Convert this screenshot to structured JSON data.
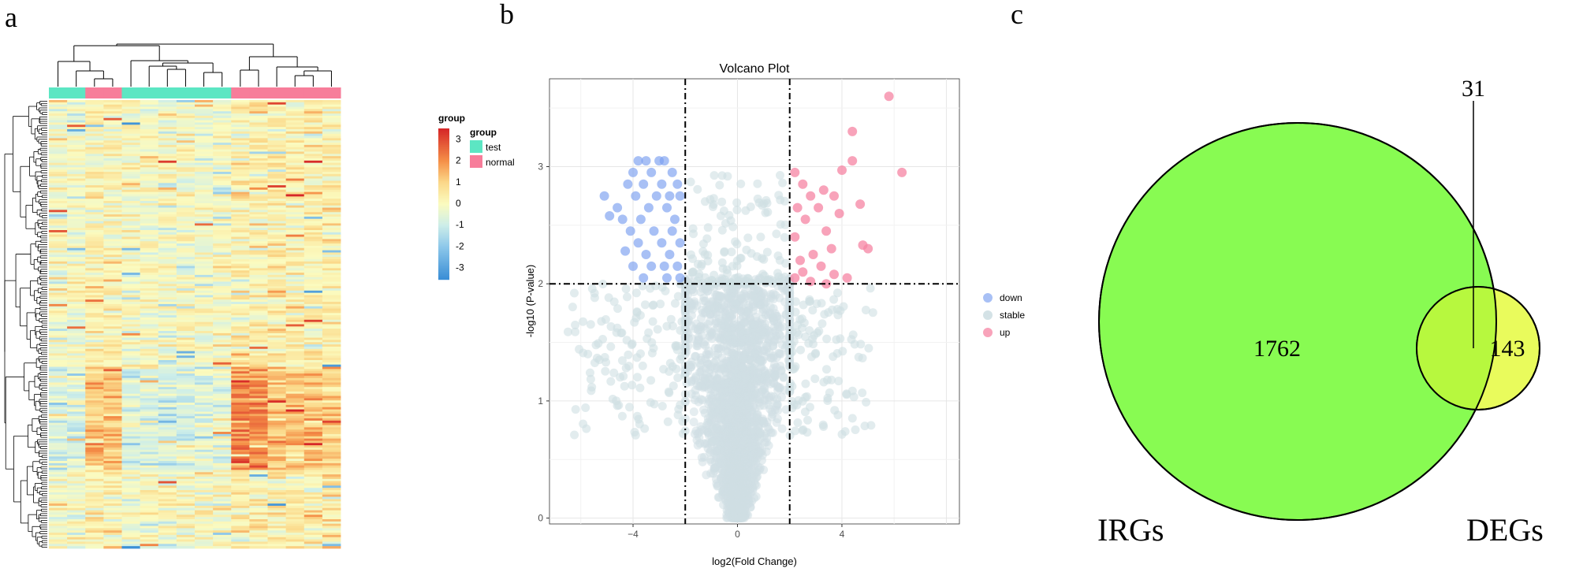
{
  "panels": {
    "a": "a",
    "b": "b",
    "c": "c"
  },
  "chart_data": [
    {
      "type": "heatmap",
      "panel": "a",
      "legend": {
        "title": "group",
        "entries": [
          {
            "label": "test",
            "color": "#5ce6c3"
          },
          {
            "label": "normal",
            "color": "#f77d9a"
          }
        ]
      },
      "colorbar": {
        "ticks": [
          "3",
          "2",
          "1",
          "0",
          "-1",
          "-2",
          "-3"
        ],
        "range": [
          -3.5,
          3.5
        ]
      },
      "column_groups": [
        "test",
        "test",
        "normal",
        "normal",
        "test",
        "test",
        "test",
        "test",
        "test",
        "test",
        "normal",
        "normal",
        "normal",
        "normal",
        "normal",
        "normal"
      ],
      "approx_rows": 200
    },
    {
      "type": "scatter",
      "panel": "b",
      "title": "Volcano Plot",
      "xlabel": "log2(Fold Change)",
      "ylabel": "-log10 (P-value)",
      "xlim": [
        -7.2,
        8.5
      ],
      "ylim": [
        -0.05,
        3.75
      ],
      "xticks": [
        -4,
        0,
        4
      ],
      "yticks": [
        0,
        1,
        2,
        3
      ],
      "thresholds": {
        "x": [
          -2,
          2
        ],
        "y": 2
      },
      "legend": [
        {
          "label": "down",
          "color": "#7a9ef0"
        },
        {
          "label": "stable",
          "color": "#cfdfe3"
        },
        {
          "label": "up",
          "color": "#f584a3"
        }
      ],
      "series": [
        {
          "name": "down",
          "points": [
            [
              -3.8,
              3.05
            ],
            [
              -3.5,
              3.05
            ],
            [
              -3.0,
              3.05
            ],
            [
              -2.8,
              3.05
            ],
            [
              -4.0,
              2.95
            ],
            [
              -3.3,
              2.95
            ],
            [
              -2.5,
              2.95
            ],
            [
              -4.2,
              2.85
            ],
            [
              -3.6,
              2.85
            ],
            [
              -2.9,
              2.85
            ],
            [
              -2.3,
              2.85
            ],
            [
              -5.1,
              2.75
            ],
            [
              -3.9,
              2.75
            ],
            [
              -3.1,
              2.75
            ],
            [
              -2.6,
              2.75
            ],
            [
              -2.2,
              2.75
            ],
            [
              -4.6,
              2.65
            ],
            [
              -3.4,
              2.65
            ],
            [
              -2.7,
              2.65
            ],
            [
              -4.9,
              2.58
            ],
            [
              -4.4,
              2.55
            ],
            [
              -3.7,
              2.55
            ],
            [
              -2.4,
              2.55
            ],
            [
              -4.1,
              2.45
            ],
            [
              -3.2,
              2.45
            ],
            [
              -2.5,
              2.45
            ],
            [
              -3.8,
              2.35
            ],
            [
              -2.9,
              2.35
            ],
            [
              -2.2,
              2.35
            ],
            [
              -4.3,
              2.28
            ],
            [
              -3.5,
              2.25
            ],
            [
              -2.6,
              2.25
            ],
            [
              -4.0,
              2.15
            ],
            [
              -3.3,
              2.15
            ],
            [
              -2.8,
              2.15
            ],
            [
              -2.3,
              2.15
            ],
            [
              -3.6,
              2.05
            ],
            [
              -2.7,
              2.05
            ],
            [
              -2.2,
              2.05
            ]
          ]
        },
        {
          "name": "up",
          "points": [
            [
              5.8,
              3.6
            ],
            [
              4.4,
              3.3
            ],
            [
              6.3,
              2.95
            ],
            [
              4.4,
              3.05
            ],
            [
              4.0,
              2.97
            ],
            [
              2.2,
              2.95
            ],
            [
              2.5,
              2.85
            ],
            [
              3.3,
              2.8
            ],
            [
              3.7,
              2.75
            ],
            [
              2.8,
              2.75
            ],
            [
              4.7,
              2.68
            ],
            [
              3.1,
              2.65
            ],
            [
              2.3,
              2.65
            ],
            [
              3.9,
              2.6
            ],
            [
              2.6,
              2.55
            ],
            [
              3.4,
              2.45
            ],
            [
              2.2,
              2.4
            ],
            [
              4.8,
              2.33
            ],
            [
              5.0,
              2.3
            ],
            [
              3.6,
              2.3
            ],
            [
              2.9,
              2.25
            ],
            [
              2.4,
              2.2
            ],
            [
              3.2,
              2.15
            ],
            [
              2.5,
              2.1
            ],
            [
              3.7,
              2.08
            ],
            [
              2.2,
              2.05
            ],
            [
              2.8,
              2.02
            ],
            [
              3.4,
              2.0
            ],
            [
              4.2,
              2.05
            ]
          ]
        },
        {
          "name": "stable",
          "points": []
        }
      ]
    },
    {
      "type": "venn",
      "panel": "c",
      "sets": [
        {
          "label": "IRGs",
          "only": "1762",
          "color": "#88fb52"
        },
        {
          "label": "DEGs",
          "only": "143",
          "color": "#e9fb5c"
        }
      ],
      "intersection": "31"
    }
  ]
}
